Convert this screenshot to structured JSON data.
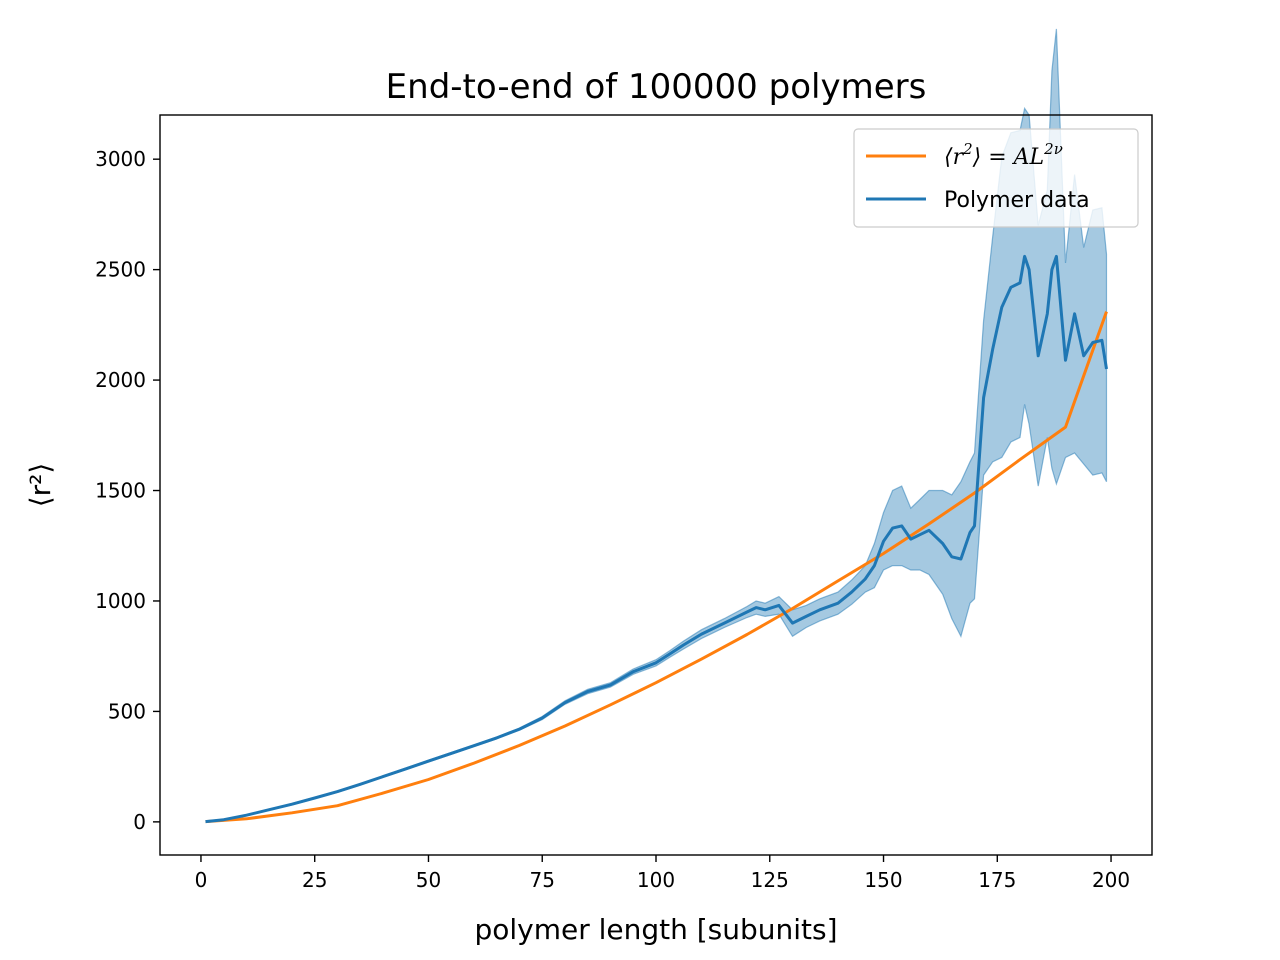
{
  "chart_data": {
    "type": "line",
    "title": "End-to-end of 100000 polymers",
    "xlabel": "polymer length [subunits]",
    "ylabel_text": "⟨r²⟩",
    "xlim": [
      -9,
      209
    ],
    "ylim": [
      -150,
      3200
    ],
    "xticks": [
      0,
      25,
      50,
      75,
      100,
      125,
      150,
      175,
      200
    ],
    "yticks": [
      0,
      500,
      1000,
      1500,
      2000,
      2500,
      3000
    ],
    "grid": false,
    "legend_position": "top-right",
    "colors": {
      "fit": "#ff7f0e",
      "data": "#1f77b4",
      "band": "#1f77b4"
    },
    "series": [
      {
        "name": "⟨r²⟩ = AL^2ν",
        "legend": {
          "base": "⟨r",
          "sup1": "2",
          "mid": "⟩ = AL",
          "sup2": "2ν"
        },
        "kind": "line",
        "x": [
          1,
          10,
          20,
          30,
          40,
          50,
          60,
          70,
          80,
          90,
          100,
          110,
          120,
          130,
          140,
          150,
          160,
          170,
          180,
          190,
          199
        ],
        "y": [
          1,
          14,
          41,
          73,
          130,
          192,
          266,
          346,
          434,
          530,
          630,
          737,
          848,
          966,
          1091,
          1215,
          1349,
          1489,
          1640,
          1787,
          2310
        ]
      },
      {
        "name": "Polymer data",
        "kind": "line_with_band",
        "x": [
          1,
          5,
          10,
          15,
          20,
          25,
          30,
          35,
          40,
          45,
          50,
          55,
          60,
          65,
          70,
          75,
          80,
          85,
          90,
          95,
          100,
          103,
          106,
          110,
          115,
          120,
          122,
          124,
          127,
          130,
          133,
          136,
          140,
          143,
          146,
          148,
          150,
          152,
          154,
          156,
          158,
          160,
          163,
          165,
          167,
          169,
          170,
          172,
          174,
          176,
          178,
          180,
          181,
          182,
          184,
          186,
          187,
          188,
          190,
          192,
          194,
          196,
          198,
          199
        ],
        "y": [
          1,
          10,
          30,
          55,
          80,
          108,
          137,
          170,
          205,
          240,
          275,
          310,
          345,
          380,
          420,
          470,
          540,
          590,
          620,
          680,
          720,
          760,
          800,
          850,
          900,
          950,
          970,
          960,
          980,
          900,
          930,
          960,
          990,
          1040,
          1100,
          1160,
          1270,
          1330,
          1340,
          1280,
          1300,
          1320,
          1260,
          1200,
          1190,
          1310,
          1340,
          1920,
          2140,
          2330,
          2420,
          2440,
          2560,
          2500,
          2110,
          2300,
          2500,
          2560,
          2090,
          2300,
          2110,
          2170,
          2180,
          2050
        ],
        "y_low": [
          1,
          9,
          28,
          53,
          77,
          105,
          134,
          167,
          202,
          236,
          271,
          306,
          341,
          376,
          415,
          463,
          532,
          580,
          610,
          668,
          706,
          745,
          782,
          830,
          880,
          925,
          940,
          930,
          940,
          840,
          880,
          910,
          940,
          985,
          1040,
          1060,
          1140,
          1160,
          1160,
          1140,
          1140,
          1120,
          1030,
          920,
          840,
          990,
          1010,
          1570,
          1630,
          1650,
          1720,
          1740,
          1890,
          1800,
          1520,
          1740,
          1600,
          1530,
          1650,
          1670,
          1620,
          1570,
          1580,
          1540
        ],
        "y_high": [
          1,
          11,
          32,
          57,
          83,
          111,
          140,
          173,
          208,
          244,
          279,
          314,
          349,
          384,
          425,
          477,
          548,
          600,
          630,
          692,
          734,
          775,
          818,
          870,
          920,
          975,
          1000,
          990,
          1020,
          960,
          980,
          1010,
          1040,
          1095,
          1160,
          1260,
          1400,
          1500,
          1520,
          1420,
          1460,
          1500,
          1500,
          1480,
          1540,
          1630,
          1670,
          2270,
          2650,
          3010,
          3120,
          3130,
          3230,
          3200,
          2700,
          2860,
          3400,
          3590,
          2530,
          2930,
          2600,
          2770,
          2780,
          2570
        ]
      }
    ]
  }
}
